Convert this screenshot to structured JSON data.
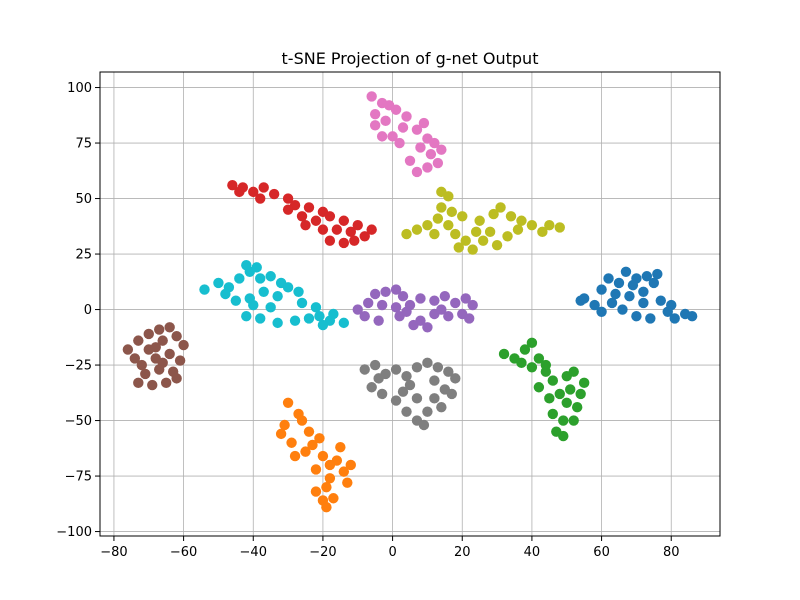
{
  "chart_data": {
    "type": "scatter",
    "title": "t-SNE Projection of g-net Output",
    "xlabel": "",
    "ylabel": "",
    "xlim": [
      -84,
      94
    ],
    "ylim": [
      -102,
      107
    ],
    "xticks": [
      -80,
      -60,
      -40,
      -20,
      0,
      20,
      40,
      60,
      80
    ],
    "yticks": [
      -100,
      -75,
      -50,
      -25,
      0,
      25,
      50,
      75,
      100
    ],
    "grid": true,
    "legend": "none",
    "series": [
      {
        "color": "#1f77b4",
        "values": [
          [
            55,
            5
          ],
          [
            60,
            9
          ],
          [
            65,
            12
          ],
          [
            70,
            14
          ],
          [
            73,
            15
          ],
          [
            75,
            12
          ],
          [
            63,
            3
          ],
          [
            68,
            6
          ],
          [
            72,
            3
          ],
          [
            77,
            4
          ],
          [
            80,
            2
          ],
          [
            84,
            -2
          ],
          [
            86,
            -3
          ],
          [
            70,
            -3
          ],
          [
            66,
            0
          ],
          [
            58,
            2
          ],
          [
            62,
            14
          ],
          [
            67,
            17
          ],
          [
            76,
            16
          ],
          [
            72,
            8
          ],
          [
            60,
            -1
          ],
          [
            79,
            -1
          ],
          [
            54,
            4
          ],
          [
            74,
            -4
          ],
          [
            81,
            -4
          ],
          [
            64,
            7
          ],
          [
            69,
            11
          ]
        ]
      },
      {
        "color": "#ff7f0e",
        "values": [
          [
            -30,
            -42
          ],
          [
            -27,
            -47
          ],
          [
            -31,
            -52
          ],
          [
            -24,
            -55
          ],
          [
            -21,
            -58
          ],
          [
            -29,
            -60
          ],
          [
            -25,
            -64
          ],
          [
            -20,
            -66
          ],
          [
            -16,
            -68
          ],
          [
            -22,
            -72
          ],
          [
            -18,
            -76
          ],
          [
            -14,
            -73
          ],
          [
            -19,
            -80
          ],
          [
            -22,
            -82
          ],
          [
            -17,
            -85
          ],
          [
            -19,
            -89
          ],
          [
            -13,
            -78
          ],
          [
            -26,
            -50
          ],
          [
            -32,
            -56
          ],
          [
            -28,
            -66
          ],
          [
            -15,
            -62
          ],
          [
            -12,
            -70
          ],
          [
            -23,
            -61
          ],
          [
            -18,
            -70
          ],
          [
            -20,
            -86
          ]
        ]
      },
      {
        "color": "#2ca02c",
        "values": [
          [
            32,
            -20
          ],
          [
            35,
            -22
          ],
          [
            38,
            -18
          ],
          [
            40,
            -15
          ],
          [
            42,
            -22
          ],
          [
            40,
            -26
          ],
          [
            44,
            -28
          ],
          [
            46,
            -32
          ],
          [
            50,
            -30
          ],
          [
            52,
            -28
          ],
          [
            55,
            -33
          ],
          [
            48,
            -38
          ],
          [
            50,
            -42
          ],
          [
            53,
            -44
          ],
          [
            46,
            -47
          ],
          [
            49,
            -50
          ],
          [
            47,
            -55
          ],
          [
            49,
            -57
          ],
          [
            52,
            -50
          ],
          [
            42,
            -35
          ],
          [
            37,
            -24
          ],
          [
            45,
            -40
          ],
          [
            54,
            -38
          ],
          [
            51,
            -36
          ],
          [
            44,
            -25
          ]
        ]
      },
      {
        "color": "#d62728",
        "values": [
          [
            -46,
            56
          ],
          [
            -43,
            55
          ],
          [
            -40,
            53
          ],
          [
            -37,
            55
          ],
          [
            -34,
            52
          ],
          [
            -30,
            50
          ],
          [
            -38,
            50
          ],
          [
            -44,
            53
          ],
          [
            -28,
            47
          ],
          [
            -24,
            46
          ],
          [
            -20,
            44
          ],
          [
            -18,
            42
          ],
          [
            -22,
            40
          ],
          [
            -26,
            42
          ],
          [
            -14,
            40
          ],
          [
            -10,
            38
          ],
          [
            -6,
            36
          ],
          [
            -8,
            33
          ],
          [
            -12,
            35
          ],
          [
            -16,
            36
          ],
          [
            -20,
            36
          ],
          [
            -25,
            38
          ],
          [
            -14,
            30
          ],
          [
            -18,
            31
          ],
          [
            -11,
            31
          ],
          [
            -30,
            45
          ]
        ]
      },
      {
        "color": "#9467bd",
        "values": [
          [
            -10,
            0
          ],
          [
            -7,
            3
          ],
          [
            -5,
            7
          ],
          [
            -2,
            8
          ],
          [
            1,
            9
          ],
          [
            3,
            6
          ],
          [
            -3,
            2
          ],
          [
            1,
            1
          ],
          [
            5,
            2
          ],
          [
            8,
            5
          ],
          [
            12,
            4
          ],
          [
            15,
            6
          ],
          [
            18,
            3
          ],
          [
            21,
            5
          ],
          [
            23,
            2
          ],
          [
            20,
            -2
          ],
          [
            16,
            -3
          ],
          [
            12,
            -2
          ],
          [
            8,
            -5
          ],
          [
            10,
            -8
          ],
          [
            6,
            -7
          ],
          [
            2,
            -3
          ],
          [
            -4,
            -5
          ],
          [
            -8,
            -3
          ],
          [
            22,
            -4
          ],
          [
            14,
            0
          ],
          [
            4,
            -1
          ]
        ]
      },
      {
        "color": "#8c564b",
        "values": [
          [
            -76,
            -18
          ],
          [
            -73,
            -14
          ],
          [
            -70,
            -11
          ],
          [
            -67,
            -9
          ],
          [
            -64,
            -8
          ],
          [
            -62,
            -12
          ],
          [
            -66,
            -14
          ],
          [
            -70,
            -18
          ],
          [
            -74,
            -22
          ],
          [
            -68,
            -22
          ],
          [
            -64,
            -20
          ],
          [
            -61,
            -23
          ],
          [
            -63,
            -28
          ],
          [
            -67,
            -27
          ],
          [
            -71,
            -29
          ],
          [
            -73,
            -33
          ],
          [
            -69,
            -34
          ],
          [
            -65,
            -33
          ],
          [
            -62,
            -31
          ],
          [
            -72,
            -25
          ],
          [
            -66,
            -24
          ],
          [
            -60,
            -16
          ],
          [
            -68,
            -17
          ]
        ]
      },
      {
        "color": "#e377c2",
        "values": [
          [
            -6,
            96
          ],
          [
            -3,
            93
          ],
          [
            -5,
            88
          ],
          [
            -2,
            85
          ],
          [
            1,
            90
          ],
          [
            4,
            87
          ],
          [
            3,
            82
          ],
          [
            0,
            78
          ],
          [
            -3,
            78
          ],
          [
            -5,
            83
          ],
          [
            7,
            81
          ],
          [
            10,
            77
          ],
          [
            8,
            73
          ],
          [
            11,
            70
          ],
          [
            14,
            72
          ],
          [
            13,
            66
          ],
          [
            10,
            64
          ],
          [
            7,
            62
          ],
          [
            5,
            67
          ],
          [
            9,
            84
          ],
          [
            2,
            75
          ],
          [
            -1,
            92
          ],
          [
            12,
            75
          ]
        ]
      },
      {
        "color": "#7f7f7f",
        "values": [
          [
            -8,
            -27
          ],
          [
            -5,
            -25
          ],
          [
            -2,
            -29
          ],
          [
            1,
            -27
          ],
          [
            4,
            -30
          ],
          [
            7,
            -26
          ],
          [
            10,
            -24
          ],
          [
            13,
            -26
          ],
          [
            16,
            -28
          ],
          [
            18,
            -31
          ],
          [
            15,
            -36
          ],
          [
            12,
            -40
          ],
          [
            10,
            -46
          ],
          [
            7,
            -50
          ],
          [
            9,
            -52
          ],
          [
            4,
            -46
          ],
          [
            1,
            -41
          ],
          [
            -3,
            -38
          ],
          [
            -6,
            -35
          ],
          [
            -4,
            -31
          ],
          [
            3,
            -37
          ],
          [
            7,
            -40
          ],
          [
            14,
            -44
          ],
          [
            17,
            -38
          ],
          [
            12,
            -32
          ],
          [
            5,
            -34
          ]
        ]
      },
      {
        "color": "#bcbd22",
        "values": [
          [
            4,
            34
          ],
          [
            7,
            36
          ],
          [
            10,
            38
          ],
          [
            13,
            41
          ],
          [
            14,
            46
          ],
          [
            17,
            44
          ],
          [
            20,
            42
          ],
          [
            16,
            38
          ],
          [
            12,
            34
          ],
          [
            18,
            34
          ],
          [
            21,
            31
          ],
          [
            19,
            28
          ],
          [
            23,
            27
          ],
          [
            26,
            31
          ],
          [
            28,
            35
          ],
          [
            25,
            40
          ],
          [
            29,
            43
          ],
          [
            31,
            46
          ],
          [
            34,
            42
          ],
          [
            37,
            40
          ],
          [
            40,
            38
          ],
          [
            43,
            35
          ],
          [
            45,
            38
          ],
          [
            48,
            37
          ],
          [
            33,
            33
          ],
          [
            30,
            29
          ],
          [
            24,
            35
          ],
          [
            36,
            36
          ],
          [
            16,
            51
          ],
          [
            14,
            53
          ]
        ]
      },
      {
        "color": "#17becf",
        "values": [
          [
            -54,
            9
          ],
          [
            -50,
            12
          ],
          [
            -47,
            10
          ],
          [
            -44,
            14
          ],
          [
            -41,
            17
          ],
          [
            -39,
            19
          ],
          [
            -42,
            20
          ],
          [
            -38,
            14
          ],
          [
            -35,
            15
          ],
          [
            -32,
            12
          ],
          [
            -30,
            10
          ],
          [
            -27,
            8
          ],
          [
            -33,
            6
          ],
          [
            -37,
            8
          ],
          [
            -41,
            5
          ],
          [
            -45,
            4
          ],
          [
            -40,
            2
          ],
          [
            -35,
            1
          ],
          [
            -42,
            -3
          ],
          [
            -38,
            -4
          ],
          [
            -33,
            -6
          ],
          [
            -28,
            -5
          ],
          [
            -24,
            -4
          ],
          [
            -21,
            -3
          ],
          [
            -18,
            -5
          ],
          [
            -14,
            -6
          ],
          [
            -17,
            -2
          ],
          [
            -22,
            1
          ],
          [
            -26,
            3
          ],
          [
            -20,
            -7
          ],
          [
            -48,
            7
          ]
        ]
      }
    ]
  }
}
